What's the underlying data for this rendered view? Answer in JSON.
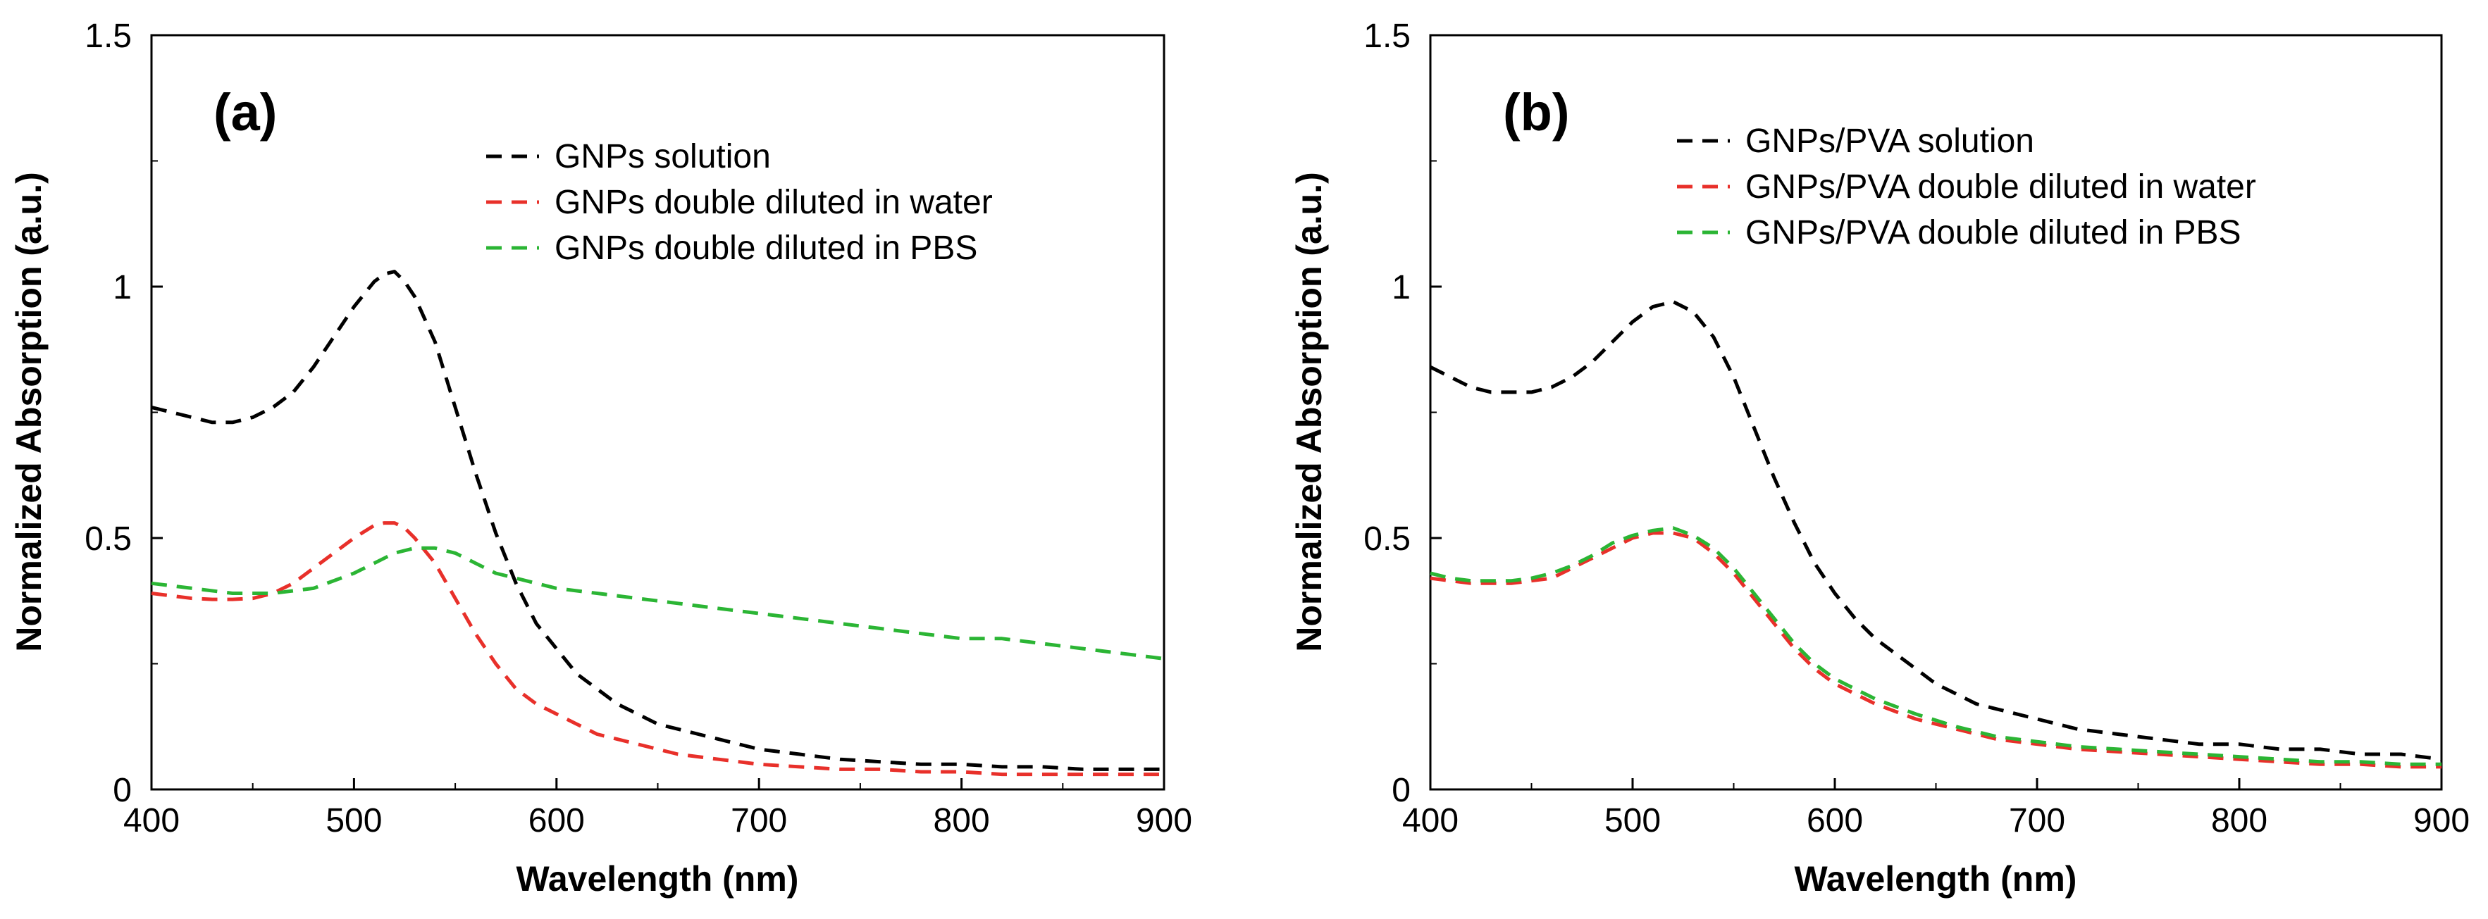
{
  "chart_data": [
    {
      "type": "line",
      "panel_label": "(a)",
      "xlabel": "Wavelength (nm)",
      "ylabel": "Normalized Absorption (a.u.)",
      "xlim": [
        400,
        900
      ],
      "ylim": [
        0,
        1.5
      ],
      "x_ticks": [
        400,
        500,
        600,
        700,
        800,
        900
      ],
      "y_ticks": [
        0,
        0.5,
        1,
        1.5
      ],
      "x_tick_labels": [
        "400",
        "500",
        "600",
        "700",
        "800",
        "900"
      ],
      "y_tick_labels": [
        "0",
        "0.5",
        "1",
        "1.5"
      ],
      "grid": false,
      "legend_position": "top-right",
      "series": [
        {
          "name": "GNPs solution",
          "color": "#000000",
          "x": [
            400,
            410,
            420,
            430,
            440,
            450,
            460,
            470,
            480,
            490,
            500,
            510,
            515,
            520,
            525,
            530,
            540,
            550,
            560,
            570,
            580,
            590,
            600,
            610,
            620,
            630,
            640,
            650,
            660,
            670,
            680,
            690,
            700,
            720,
            740,
            760,
            780,
            800,
            820,
            840,
            860,
            880,
            900
          ],
          "y": [
            0.76,
            0.75,
            0.74,
            0.73,
            0.73,
            0.74,
            0.76,
            0.79,
            0.84,
            0.9,
            0.96,
            1.01,
            1.025,
            1.03,
            1.01,
            0.98,
            0.89,
            0.76,
            0.63,
            0.51,
            0.41,
            0.33,
            0.28,
            0.23,
            0.2,
            0.17,
            0.15,
            0.13,
            0.12,
            0.11,
            0.1,
            0.09,
            0.08,
            0.07,
            0.06,
            0.055,
            0.05,
            0.05,
            0.045,
            0.045,
            0.04,
            0.04,
            0.04
          ]
        },
        {
          "name": "GNPs double diluted in water",
          "color": "#e8302a",
          "x": [
            400,
            410,
            420,
            430,
            440,
            450,
            460,
            470,
            480,
            490,
            500,
            510,
            515,
            520,
            525,
            530,
            540,
            550,
            560,
            570,
            580,
            590,
            600,
            610,
            620,
            630,
            640,
            650,
            660,
            670,
            680,
            690,
            700,
            720,
            740,
            760,
            780,
            800,
            820,
            840,
            860,
            880,
            900
          ],
          "y": [
            0.39,
            0.385,
            0.38,
            0.378,
            0.378,
            0.38,
            0.39,
            0.41,
            0.44,
            0.47,
            0.5,
            0.525,
            0.53,
            0.53,
            0.52,
            0.5,
            0.45,
            0.38,
            0.31,
            0.25,
            0.2,
            0.17,
            0.15,
            0.13,
            0.11,
            0.1,
            0.09,
            0.08,
            0.07,
            0.065,
            0.06,
            0.055,
            0.05,
            0.045,
            0.04,
            0.04,
            0.035,
            0.035,
            0.03,
            0.03,
            0.03,
            0.03,
            0.03
          ]
        },
        {
          "name": "GNPs double diluted in PBS",
          "color": "#2bb534",
          "x": [
            400,
            420,
            440,
            460,
            480,
            500,
            510,
            520,
            530,
            540,
            550,
            560,
            570,
            580,
            590,
            600,
            620,
            640,
            660,
            680,
            700,
            720,
            740,
            760,
            780,
            800,
            820,
            840,
            860,
            880,
            900
          ],
          "y": [
            0.41,
            0.4,
            0.39,
            0.39,
            0.4,
            0.43,
            0.45,
            0.47,
            0.48,
            0.48,
            0.47,
            0.45,
            0.43,
            0.42,
            0.41,
            0.4,
            0.39,
            0.38,
            0.37,
            0.36,
            0.35,
            0.34,
            0.33,
            0.32,
            0.31,
            0.3,
            0.3,
            0.29,
            0.28,
            0.27,
            0.26
          ]
        }
      ]
    },
    {
      "type": "line",
      "panel_label": "(b)",
      "xlabel": "Wavelength (nm)",
      "ylabel": "Normalized Absorption (a.u.)",
      "xlim": [
        400,
        900
      ],
      "ylim": [
        0,
        1.5
      ],
      "x_ticks": [
        400,
        500,
        600,
        700,
        800,
        900
      ],
      "y_ticks": [
        0,
        0.5,
        1,
        1.5
      ],
      "x_tick_labels": [
        "400",
        "500",
        "600",
        "700",
        "800",
        "900"
      ],
      "y_tick_labels": [
        "0",
        "0.5",
        "1",
        "1.5"
      ],
      "grid": false,
      "legend_position": "top-right",
      "series": [
        {
          "name": "GNPs/PVA solution",
          "color": "#000000",
          "x": [
            400,
            410,
            420,
            430,
            440,
            450,
            460,
            470,
            480,
            490,
            500,
            510,
            520,
            530,
            540,
            550,
            560,
            570,
            580,
            590,
            600,
            610,
            620,
            630,
            640,
            650,
            660,
            670,
            680,
            690,
            700,
            720,
            740,
            760,
            780,
            800,
            820,
            840,
            860,
            880,
            900
          ],
          "y": [
            0.84,
            0.82,
            0.8,
            0.79,
            0.79,
            0.79,
            0.8,
            0.82,
            0.85,
            0.89,
            0.93,
            0.96,
            0.97,
            0.95,
            0.9,
            0.82,
            0.72,
            0.62,
            0.53,
            0.45,
            0.39,
            0.34,
            0.3,
            0.27,
            0.24,
            0.21,
            0.19,
            0.17,
            0.16,
            0.15,
            0.14,
            0.12,
            0.11,
            0.1,
            0.09,
            0.09,
            0.08,
            0.08,
            0.07,
            0.07,
            0.06
          ]
        },
        {
          "name": "GNPs/PVA double diluted in water",
          "color": "#e8302a",
          "x": [
            400,
            410,
            420,
            430,
            440,
            450,
            460,
            470,
            480,
            490,
            500,
            510,
            520,
            530,
            540,
            550,
            560,
            570,
            580,
            590,
            600,
            620,
            640,
            660,
            680,
            700,
            720,
            740,
            760,
            780,
            800,
            820,
            840,
            860,
            880,
            900
          ],
          "y": [
            0.42,
            0.415,
            0.41,
            0.41,
            0.41,
            0.415,
            0.42,
            0.44,
            0.46,
            0.48,
            0.5,
            0.51,
            0.51,
            0.5,
            0.47,
            0.43,
            0.38,
            0.33,
            0.28,
            0.24,
            0.21,
            0.17,
            0.14,
            0.12,
            0.1,
            0.09,
            0.08,
            0.075,
            0.07,
            0.065,
            0.06,
            0.055,
            0.05,
            0.05,
            0.045,
            0.045
          ]
        },
        {
          "name": "GNPs/PVA double diluted in PBS",
          "color": "#2bb534",
          "x": [
            400,
            410,
            420,
            430,
            440,
            450,
            460,
            470,
            480,
            490,
            500,
            510,
            520,
            530,
            540,
            550,
            560,
            570,
            580,
            590,
            600,
            620,
            640,
            660,
            680,
            700,
            720,
            740,
            760,
            780,
            800,
            820,
            840,
            860,
            880,
            900
          ],
          "y": [
            0.43,
            0.42,
            0.415,
            0.415,
            0.415,
            0.42,
            0.43,
            0.445,
            0.465,
            0.49,
            0.505,
            0.515,
            0.52,
            0.505,
            0.48,
            0.44,
            0.39,
            0.34,
            0.29,
            0.25,
            0.22,
            0.18,
            0.15,
            0.125,
            0.105,
            0.095,
            0.085,
            0.08,
            0.075,
            0.07,
            0.065,
            0.06,
            0.055,
            0.055,
            0.05,
            0.05
          ]
        }
      ]
    }
  ]
}
